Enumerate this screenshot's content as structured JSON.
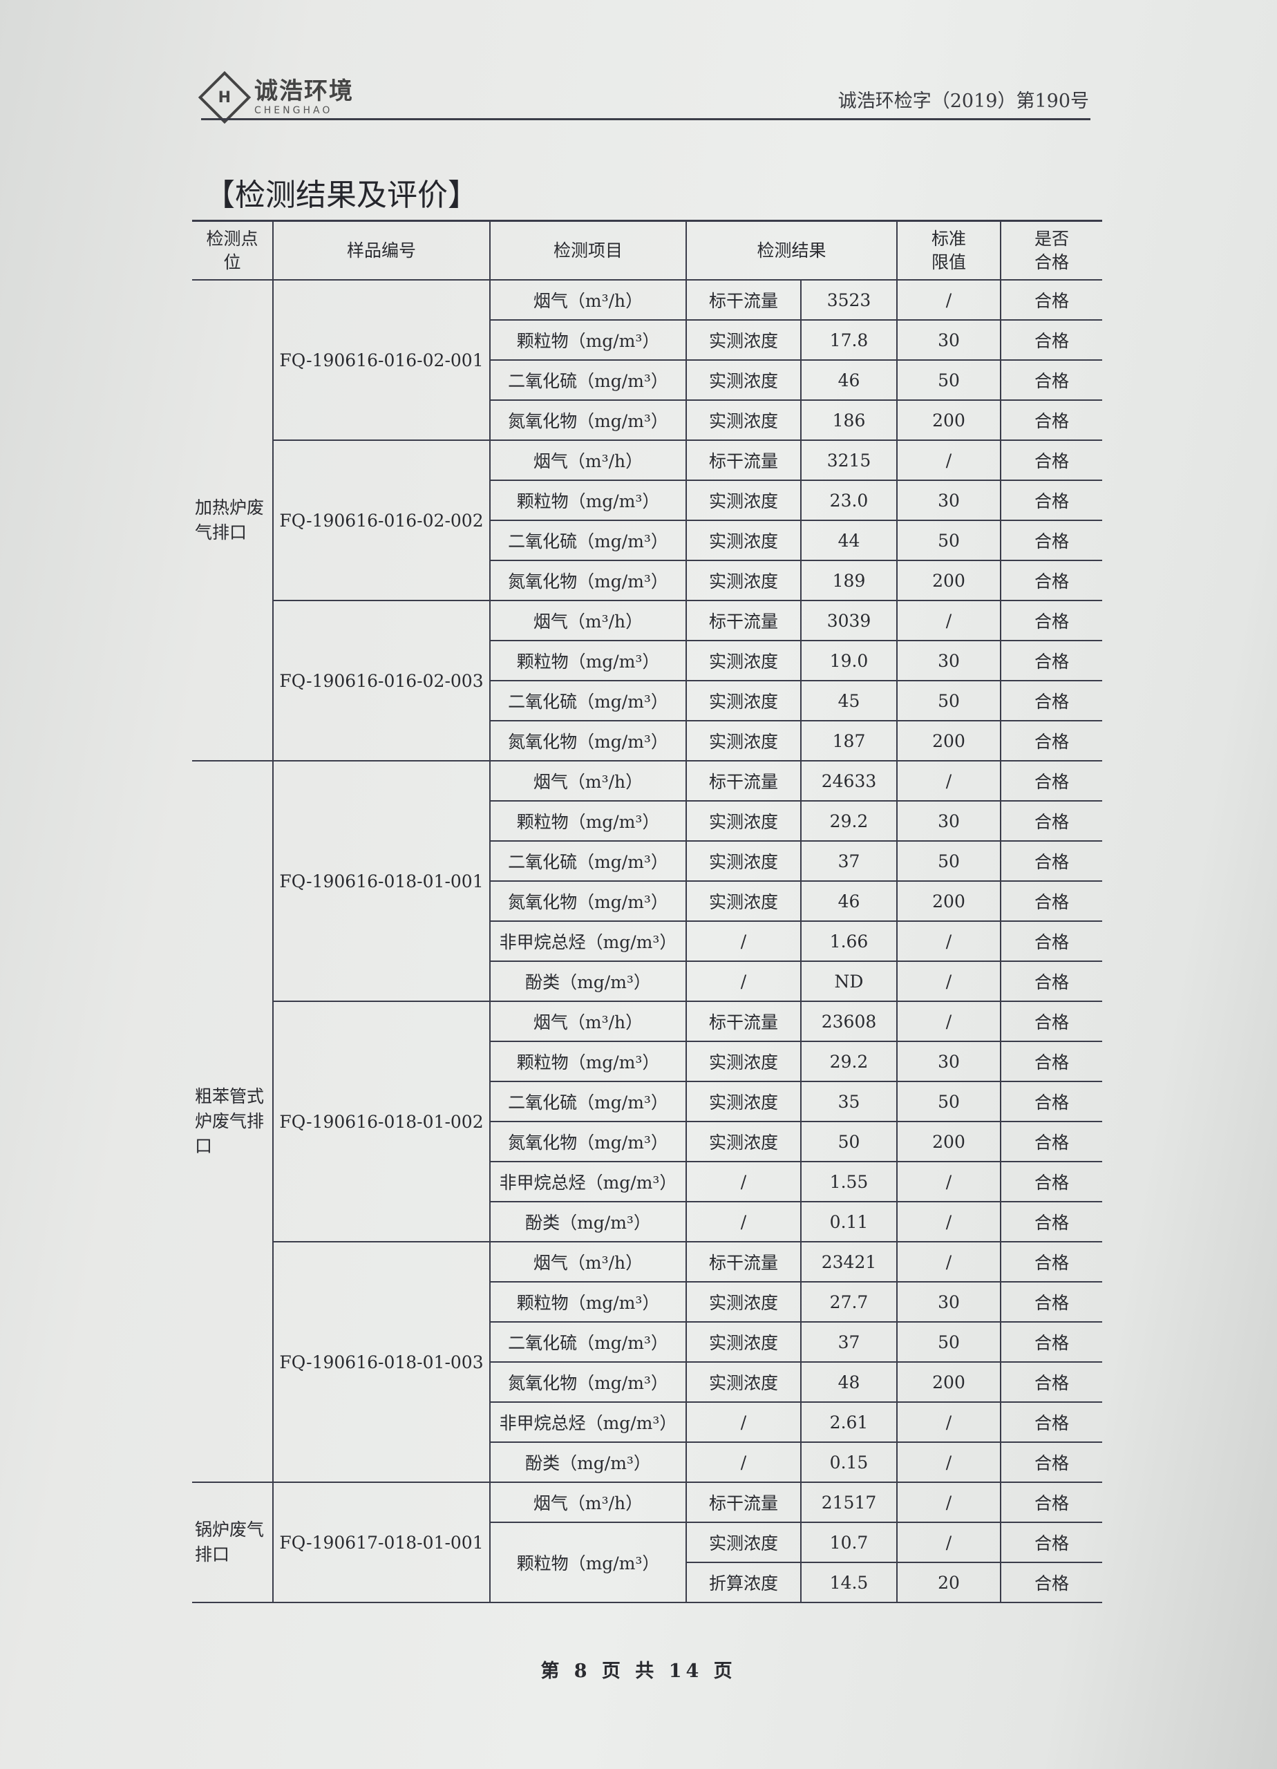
{
  "header": {
    "logo_cn": "诚浩环境",
    "logo_en": "CHENGHAO",
    "logo_mark": "H",
    "doc_number": "诚浩环检字（2019）第190号"
  },
  "section_title": "【检测结果及评价】",
  "table": {
    "columns": [
      "检测点位",
      "样品编号",
      "检测项目",
      "检测结果",
      "标准限值",
      "是否合格"
    ],
    "groups": [
      {
        "location": "加热炉废气排口",
        "samples": [
          {
            "id": "FQ-190616-016-02-001",
            "items": [
              {
                "item": "烟气（m³/h）",
                "measurements": [
                  {
                    "type": "标干流量",
                    "result": "3523",
                    "limit": "/",
                    "pass": "合格"
                  }
                ]
              },
              {
                "item": "颗粒物（mg/m³）",
                "measurements": [
                  {
                    "type": "实测浓度",
                    "result": "17.8",
                    "limit": "30",
                    "pass": "合格"
                  }
                ]
              },
              {
                "item": "二氧化硫（mg/m³）",
                "measurements": [
                  {
                    "type": "实测浓度",
                    "result": "46",
                    "limit": "50",
                    "pass": "合格"
                  }
                ]
              },
              {
                "item": "氮氧化物（mg/m³）",
                "measurements": [
                  {
                    "type": "实测浓度",
                    "result": "186",
                    "limit": "200",
                    "pass": "合格"
                  }
                ]
              }
            ]
          },
          {
            "id": "FQ-190616-016-02-002",
            "items": [
              {
                "item": "烟气（m³/h）",
                "measurements": [
                  {
                    "type": "标干流量",
                    "result": "3215",
                    "limit": "/",
                    "pass": "合格"
                  }
                ]
              },
              {
                "item": "颗粒物（mg/m³）",
                "measurements": [
                  {
                    "type": "实测浓度",
                    "result": "23.0",
                    "limit": "30",
                    "pass": "合格"
                  }
                ]
              },
              {
                "item": "二氧化硫（mg/m³）",
                "measurements": [
                  {
                    "type": "实测浓度",
                    "result": "44",
                    "limit": "50",
                    "pass": "合格"
                  }
                ]
              },
              {
                "item": "氮氧化物（mg/m³）",
                "measurements": [
                  {
                    "type": "实测浓度",
                    "result": "189",
                    "limit": "200",
                    "pass": "合格"
                  }
                ]
              }
            ]
          },
          {
            "id": "FQ-190616-016-02-003",
            "items": [
              {
                "item": "烟气（m³/h）",
                "measurements": [
                  {
                    "type": "标干流量",
                    "result": "3039",
                    "limit": "/",
                    "pass": "合格"
                  }
                ]
              },
              {
                "item": "颗粒物（mg/m³）",
                "measurements": [
                  {
                    "type": "实测浓度",
                    "result": "19.0",
                    "limit": "30",
                    "pass": "合格"
                  }
                ]
              },
              {
                "item": "二氧化硫（mg/m³）",
                "measurements": [
                  {
                    "type": "实测浓度",
                    "result": "45",
                    "limit": "50",
                    "pass": "合格"
                  }
                ]
              },
              {
                "item": "氮氧化物（mg/m³）",
                "measurements": [
                  {
                    "type": "实测浓度",
                    "result": "187",
                    "limit": "200",
                    "pass": "合格"
                  }
                ]
              }
            ]
          }
        ]
      },
      {
        "location": "粗苯管式炉废气排口",
        "samples": [
          {
            "id": "FQ-190616-018-01-001",
            "items": [
              {
                "item": "烟气（m³/h）",
                "measurements": [
                  {
                    "type": "标干流量",
                    "result": "24633",
                    "limit": "/",
                    "pass": "合格"
                  }
                ]
              },
              {
                "item": "颗粒物（mg/m³）",
                "measurements": [
                  {
                    "type": "实测浓度",
                    "result": "29.2",
                    "limit": "30",
                    "pass": "合格"
                  }
                ]
              },
              {
                "item": "二氧化硫（mg/m³）",
                "measurements": [
                  {
                    "type": "实测浓度",
                    "result": "37",
                    "limit": "50",
                    "pass": "合格"
                  }
                ]
              },
              {
                "item": "氮氧化物（mg/m³）",
                "measurements": [
                  {
                    "type": "实测浓度",
                    "result": "46",
                    "limit": "200",
                    "pass": "合格"
                  }
                ]
              },
              {
                "item": "非甲烷总烃（mg/m³）",
                "measurements": [
                  {
                    "type": "/",
                    "result": "1.66",
                    "limit": "/",
                    "pass": "合格"
                  }
                ]
              },
              {
                "item": "酚类（mg/m³）",
                "measurements": [
                  {
                    "type": "/",
                    "result": "ND",
                    "limit": "/",
                    "pass": "合格"
                  }
                ]
              }
            ]
          },
          {
            "id": "FQ-190616-018-01-002",
            "items": [
              {
                "item": "烟气（m³/h）",
                "measurements": [
                  {
                    "type": "标干流量",
                    "result": "23608",
                    "limit": "/",
                    "pass": "合格"
                  }
                ]
              },
              {
                "item": "颗粒物（mg/m³）",
                "measurements": [
                  {
                    "type": "实测浓度",
                    "result": "29.2",
                    "limit": "30",
                    "pass": "合格"
                  }
                ]
              },
              {
                "item": "二氧化硫（mg/m³）",
                "measurements": [
                  {
                    "type": "实测浓度",
                    "result": "35",
                    "limit": "50",
                    "pass": "合格"
                  }
                ]
              },
              {
                "item": "氮氧化物（mg/m³）",
                "measurements": [
                  {
                    "type": "实测浓度",
                    "result": "50",
                    "limit": "200",
                    "pass": "合格"
                  }
                ]
              },
              {
                "item": "非甲烷总烃（mg/m³）",
                "measurements": [
                  {
                    "type": "/",
                    "result": "1.55",
                    "limit": "/",
                    "pass": "合格"
                  }
                ]
              },
              {
                "item": "酚类（mg/m³）",
                "measurements": [
                  {
                    "type": "/",
                    "result": "0.11",
                    "limit": "/",
                    "pass": "合格"
                  }
                ]
              }
            ]
          },
          {
            "id": "FQ-190616-018-01-003",
            "items": [
              {
                "item": "烟气（m³/h）",
                "measurements": [
                  {
                    "type": "标干流量",
                    "result": "23421",
                    "limit": "/",
                    "pass": "合格"
                  }
                ]
              },
              {
                "item": "颗粒物（mg/m³）",
                "measurements": [
                  {
                    "type": "实测浓度",
                    "result": "27.7",
                    "limit": "30",
                    "pass": "合格"
                  }
                ]
              },
              {
                "item": "二氧化硫（mg/m³）",
                "measurements": [
                  {
                    "type": "实测浓度",
                    "result": "37",
                    "limit": "50",
                    "pass": "合格"
                  }
                ]
              },
              {
                "item": "氮氧化物（mg/m³）",
                "measurements": [
                  {
                    "type": "实测浓度",
                    "result": "48",
                    "limit": "200",
                    "pass": "合格"
                  }
                ]
              },
              {
                "item": "非甲烷总烃（mg/m³）",
                "measurements": [
                  {
                    "type": "/",
                    "result": "2.61",
                    "limit": "/",
                    "pass": "合格"
                  }
                ]
              },
              {
                "item": "酚类（mg/m³）",
                "measurements": [
                  {
                    "type": "/",
                    "result": "0.15",
                    "limit": "/",
                    "pass": "合格"
                  }
                ]
              }
            ]
          }
        ]
      },
      {
        "location": "锅炉废气排口",
        "samples": [
          {
            "id": "FQ-190617-018-01-001",
            "items": [
              {
                "item": "烟气（m³/h）",
                "measurements": [
                  {
                    "type": "标干流量",
                    "result": "21517",
                    "limit": "/",
                    "pass": "合格"
                  }
                ]
              },
              {
                "item": "颗粒物（mg/m³）",
                "measurements": [
                  {
                    "type": "实测浓度",
                    "result": "10.7",
                    "limit": "/",
                    "pass": "合格"
                  },
                  {
                    "type": "折算浓度",
                    "result": "14.5",
                    "limit": "20",
                    "pass": "合格"
                  }
                ]
              }
            ]
          }
        ]
      }
    ]
  },
  "footer": {
    "page_info": "第 8 页 共 14 页"
  }
}
